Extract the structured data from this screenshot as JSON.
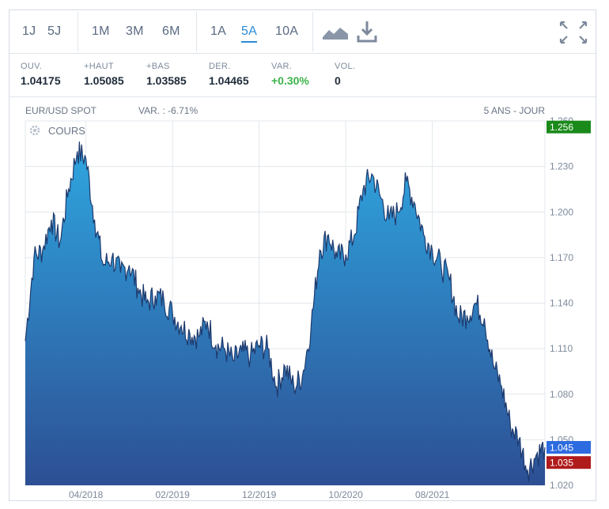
{
  "toolbar": {
    "ranges": [
      "1J",
      "5J",
      "1M",
      "3M",
      "6M",
      "1A",
      "5A",
      "10A"
    ],
    "active_range": "5A"
  },
  "stats": [
    {
      "label": "OUV.",
      "value": "1.04175"
    },
    {
      "label": "+HAUT",
      "value": "1.05085"
    },
    {
      "label": "+BAS",
      "value": "1.03585"
    },
    {
      "label": "DER.",
      "value": "1.04465"
    },
    {
      "label": "VAR.",
      "value": "+0.30%"
    },
    {
      "label": "VOL.",
      "value": "0"
    }
  ],
  "chart_header": {
    "instrument": "EUR/USD SPOT",
    "variation": "VAR. : -6.71%",
    "period": "5 ANS - JOUR",
    "series_label": "COURS"
  },
  "colors": {
    "accent": "#2a8bd6",
    "positive": "#3bb34a",
    "area_top": "#2fa6e0",
    "area_bottom": "#2d4f94",
    "high_badge": "#1a8a1a",
    "current_badge": "#2d6be0",
    "low_badge": "#b01c1c"
  },
  "chart_data": {
    "type": "area",
    "title": "",
    "xlabel": "",
    "ylabel": "",
    "ylim": [
      1.02,
      1.26
    ],
    "y_ticks": [
      "1.260",
      "1.230",
      "1.200",
      "1.170",
      "1.140",
      "1.110",
      "1.080",
      "1.050",
      "1.020"
    ],
    "x_ticks": [
      "04/2018",
      "02/2019",
      "12/2019",
      "10/2020",
      "08/2021"
    ],
    "x_range": [
      "2017-09",
      "2022-09"
    ],
    "grid": true,
    "badges": {
      "high": "1.256",
      "current": "1.045",
      "low": "1.035"
    },
    "x": [
      "2017-09",
      "2017-10",
      "2017-11",
      "2017-12",
      "2018-01",
      "2018-02",
      "2018-03",
      "2018-04",
      "2018-05",
      "2018-06",
      "2018-07",
      "2018-08",
      "2018-09",
      "2018-10",
      "2018-11",
      "2018-12",
      "2019-01",
      "2019-02",
      "2019-03",
      "2019-04",
      "2019-05",
      "2019-06",
      "2019-07",
      "2019-08",
      "2019-09",
      "2019-10",
      "2019-11",
      "2019-12",
      "2020-01",
      "2020-02",
      "2020-03",
      "2020-04",
      "2020-05",
      "2020-06",
      "2020-07",
      "2020-08",
      "2020-09",
      "2020-10",
      "2020-11",
      "2020-12",
      "2021-01",
      "2021-02",
      "2021-03",
      "2021-04",
      "2021-05",
      "2021-06",
      "2021-07",
      "2021-08",
      "2021-09",
      "2021-10",
      "2021-11",
      "2021-12",
      "2022-01",
      "2022-02",
      "2022-03",
      "2022-04",
      "2022-05",
      "2022-06",
      "2022-07",
      "2022-08",
      "2022-09"
    ],
    "values": [
      1.115,
      1.17,
      1.175,
      1.195,
      1.18,
      1.215,
      1.24,
      1.235,
      1.195,
      1.165,
      1.17,
      1.16,
      1.165,
      1.15,
      1.14,
      1.145,
      1.142,
      1.133,
      1.125,
      1.12,
      1.118,
      1.128,
      1.112,
      1.11,
      1.102,
      1.108,
      1.105,
      1.112,
      1.11,
      1.085,
      1.098,
      1.085,
      1.092,
      1.125,
      1.175,
      1.185,
      1.17,
      1.172,
      1.185,
      1.215,
      1.225,
      1.21,
      1.195,
      1.2,
      1.22,
      1.205,
      1.185,
      1.175,
      1.165,
      1.155,
      1.13,
      1.132,
      1.14,
      1.13,
      1.1,
      1.085,
      1.06,
      1.05,
      1.03,
      1.04,
      1.045
    ]
  }
}
